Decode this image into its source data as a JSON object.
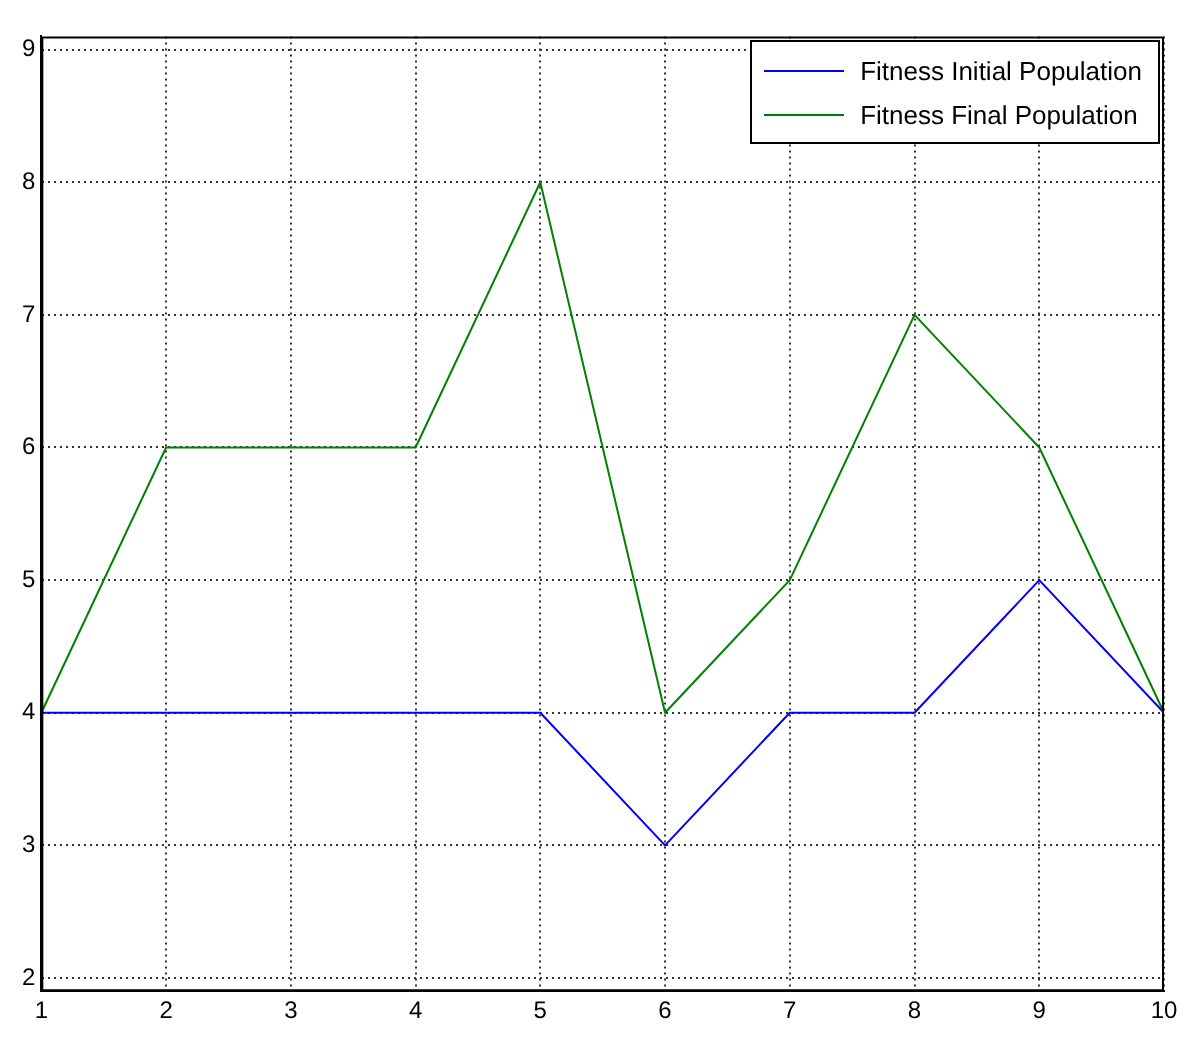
{
  "chart_data": {
    "type": "line",
    "x": [
      1,
      2,
      3,
      4,
      5,
      6,
      7,
      8,
      9,
      10
    ],
    "series": [
      {
        "name": "Fitness Initial Population",
        "color": "#0000ff",
        "values": [
          4,
          4,
          4,
          4,
          4,
          3,
          4,
          4,
          5,
          4
        ]
      },
      {
        "name": "Fitness Final Population",
        "color": "#008000",
        "values": [
          4,
          6,
          6,
          6,
          8,
          4,
          5,
          7,
          6,
          4
        ]
      }
    ],
    "xlim": [
      1,
      10
    ],
    "xticks": [
      1,
      2,
      3,
      4,
      5,
      6,
      7,
      8,
      9,
      10
    ],
    "ylim": [
      1.9,
      9.1
    ],
    "yticks": [
      2,
      3,
      4,
      5,
      6,
      7,
      8,
      9
    ],
    "grid": true,
    "legend": "top right",
    "marker": "none",
    "line_style": "solid"
  }
}
